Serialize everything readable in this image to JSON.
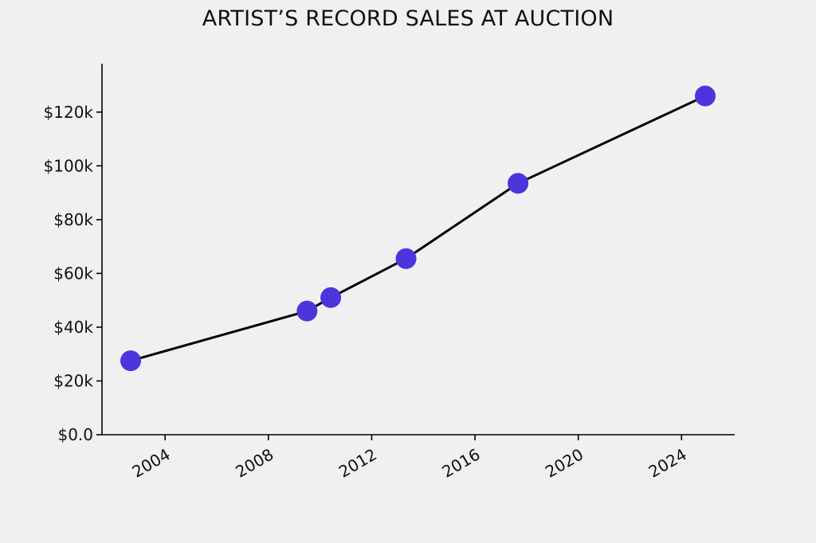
{
  "colors": {
    "background": "#f0f0f0",
    "line": "#000000",
    "marker": "#4b35dd",
    "axis": "#000000"
  },
  "chart_data": {
    "type": "line",
    "title": "ARTIST’S RECORD SALES AT AUCTION",
    "xlabel": "",
    "ylabel": "",
    "x_axis_type": "date",
    "y_format": "currency-thousands",
    "grid": false,
    "legend": "none",
    "xlim": [
      "2001-09-01",
      "2026-03-01"
    ],
    "ylim": [
      0,
      138000
    ],
    "x_ticks": [
      {
        "date": "2004-01-01",
        "label": "2004"
      },
      {
        "date": "2008-01-01",
        "label": "2008"
      },
      {
        "date": "2012-01-01",
        "label": "2012"
      },
      {
        "date": "2016-01-01",
        "label": "2016"
      },
      {
        "date": "2020-01-01",
        "label": "2020"
      },
      {
        "date": "2024-01-01",
        "label": "2024"
      }
    ],
    "y_ticks": [
      {
        "value": 0,
        "label": "$0.0"
      },
      {
        "value": 20000,
        "label": "$20k"
      },
      {
        "value": 40000,
        "label": "$40k"
      },
      {
        "value": 60000,
        "label": "$60k"
      },
      {
        "value": 80000,
        "label": "$80k"
      },
      {
        "value": 100000,
        "label": "$100k"
      },
      {
        "value": 120000,
        "label": "$120k"
      }
    ],
    "series": [
      {
        "points": [
          {
            "x": "2002-09-01",
            "y": 27500
          },
          {
            "x": "2009-07-01",
            "y": 46000
          },
          {
            "x": "2010-06-01",
            "y": 51000
          },
          {
            "x": "2013-05-01",
            "y": 65500
          },
          {
            "x": "2017-09-01",
            "y": 93500
          },
          {
            "x": "2024-12-01",
            "y": 126000
          }
        ]
      }
    ]
  }
}
